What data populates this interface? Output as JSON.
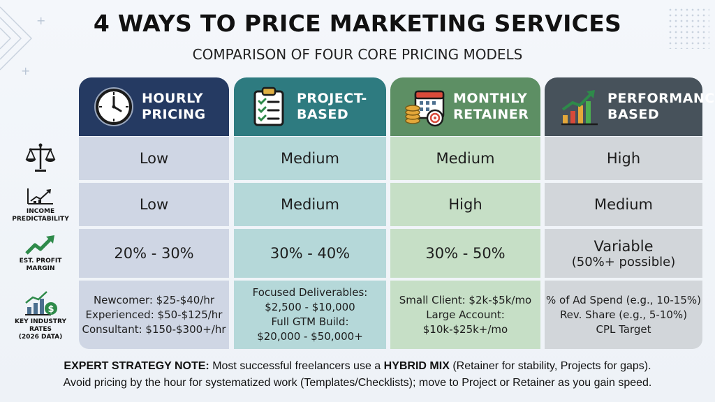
{
  "title": "4 WAYS TO PRICE MARKETING SERVICES",
  "subtitle": "COMPARISON OF FOUR CORE PRICING MODELS",
  "columns": [
    {
      "label": "HOURLY\nPRICING",
      "icon": "clock-icon",
      "color": "#253a62"
    },
    {
      "label": "PROJECT-\nBASED",
      "icon": "clipboard-checklist-icon",
      "color": "#2e7b80"
    },
    {
      "label": "MONTHLY\nRETAINER",
      "icon": "calendar-coins-target-icon",
      "color": "#5d8f64"
    },
    {
      "label": "PERFORMANCE-\nBASED",
      "icon": "growth-chart-icon",
      "color": "#47525b"
    }
  ],
  "rows": [
    {
      "label": "",
      "icon": "balance-scale-icon",
      "values": [
        "Low",
        "Medium",
        "Medium",
        "High"
      ]
    },
    {
      "label": "INCOME\nPREDICTABILITY",
      "icon": "trend-line-icon",
      "values": [
        "Low",
        "Medium",
        "High",
        "Medium"
      ]
    },
    {
      "label": "EST. PROFIT\nMARGIN",
      "icon": "upward-arrow-icon",
      "values": [
        "20% - 30%",
        "30% - 40%",
        "30% - 50%",
        "Variable"
      ],
      "extra": "(50%+ possible)"
    },
    {
      "label": "KEY INDUSTRY\nRATES\n(2026 DATA)",
      "icon": "money-bar-chart-icon",
      "values": [
        [
          "Newcomer: $25-$40/hr",
          "Experienced: $50-$125/hr",
          "Consultant: $150-$300+/hr"
        ],
        [
          "Focused Deliverables:",
          "$2,500 - $10,000",
          "Full GTM Build:",
          "$20,000 - $50,000+"
        ],
        [
          "Small Client: $2k-$5k/mo",
          "Large Account:",
          "$10k-$25k+/mo"
        ],
        [
          "% of Ad Spend (e.g., 10-15%)",
          "Rev. Share (e.g., 5-10%)",
          "CPL Target"
        ]
      ]
    }
  ],
  "note": {
    "lead": "EXPERT STRATEGY NOTE:",
    "part1": " Most successful freelancers use a ",
    "emph": "HYBRID MIX",
    "part2": " (Retainer for stability, Projects for gaps).",
    "line2": "Avoid pricing by the hour for systematized work (Templates/Checklists); move to Project or Retainer as you gain speed."
  }
}
